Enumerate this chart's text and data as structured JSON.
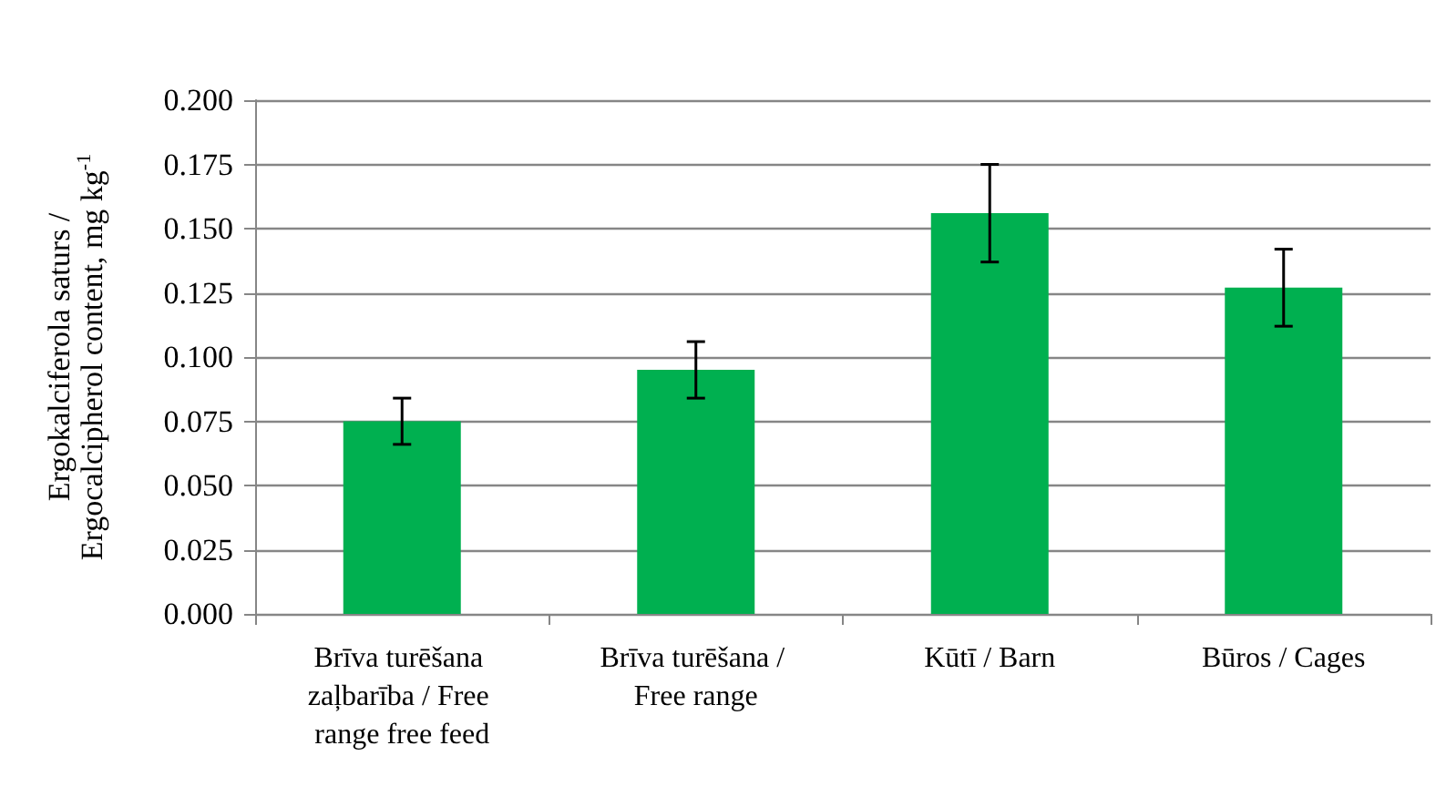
{
  "chart_data": {
    "type": "bar",
    "ylabel": "Ergokalciferola saturs / Ergocalcipherol content, mg kg$^{-1}$",
    "categories": [
      "Brīva turēšana zaļbarība / Free range free feed",
      "Brīva turēšana / Free range",
      "Kūtī / Barn",
      "Būros / Cages"
    ],
    "values": [
      0.075,
      0.095,
      0.156,
      0.127
    ],
    "errors": [
      0.009,
      0.011,
      0.019,
      0.015
    ],
    "color": "#00b050",
    "ylim": [
      0,
      0.2
    ],
    "yticks": [
      {
        "value": 0,
        "label": "0.000"
      },
      {
        "value": 0.025,
        "label": "0.025"
      },
      {
        "value": 0.05,
        "label": "0.050"
      },
      {
        "value": 0.075,
        "label": "0.075"
      },
      {
        "value": 0.1,
        "label": "0.100"
      },
      {
        "value": 0.125,
        "label": "0.125"
      },
      {
        "value": 0.15,
        "label": "0.150"
      },
      {
        "value": 0.175,
        "label": "0.175"
      },
      {
        "value": 0.2,
        "label": "0.200"
      }
    ],
    "grid": "y"
  }
}
